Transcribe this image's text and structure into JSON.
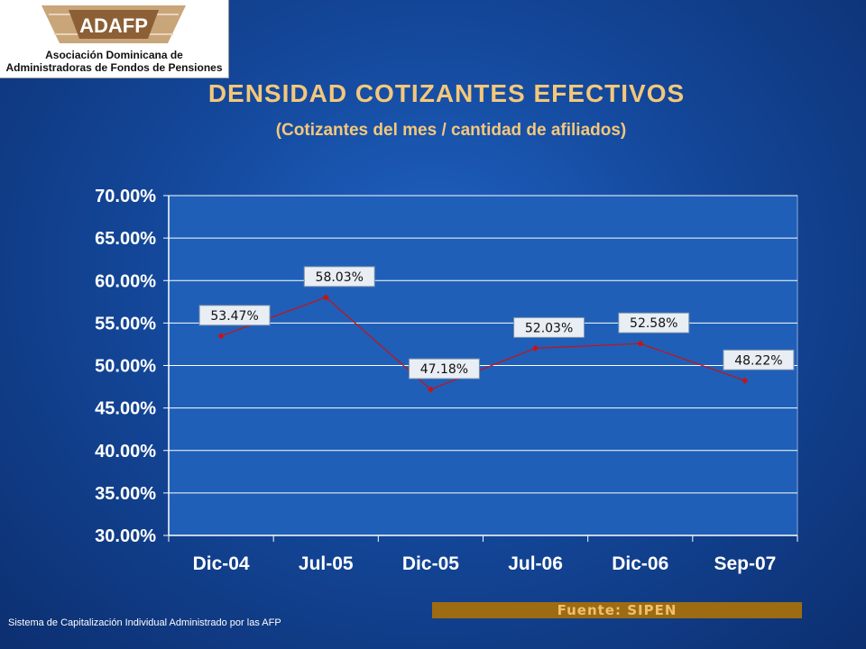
{
  "logo": {
    "brand": "ADAFP",
    "line1": "Asociación Dominicana de",
    "line2": "Administradoras de Fondos de Pensiones"
  },
  "header": {
    "title": "DENSIDAD COTIZANTES EFECTIVOS",
    "subtitle": "(Cotizantes del mes / cantidad de afiliados)"
  },
  "chart_data": {
    "type": "line",
    "categories": [
      "Dic-04",
      "Jul-05",
      "Dic-05",
      "Jul-06",
      "Dic-06",
      "Sep-07"
    ],
    "values": [
      53.47,
      58.03,
      47.18,
      52.03,
      52.58,
      48.22
    ],
    "data_labels": [
      "53.47%",
      "58.03%",
      "47.18%",
      "52.03%",
      "52.58%",
      "48.22%"
    ],
    "y_ticks": [
      "30.00%",
      "35.00%",
      "40.00%",
      "45.00%",
      "50.00%",
      "55.00%",
      "60.00%",
      "65.00%",
      "70.00%"
    ],
    "ylim": [
      30,
      70
    ],
    "y_step": 5,
    "grid": true,
    "legend": "none",
    "line_color": "#cc1111",
    "plot_background": "#1f5fb8"
  },
  "source": {
    "label": "Fuente: SIPEN"
  },
  "footer": {
    "text": "Sistema de Capitalización Individual Administrado por las AFP"
  },
  "colors": {
    "title": "#f4c87a",
    "source_bar": "#9c6b12",
    "gridline": "#ffffff"
  }
}
